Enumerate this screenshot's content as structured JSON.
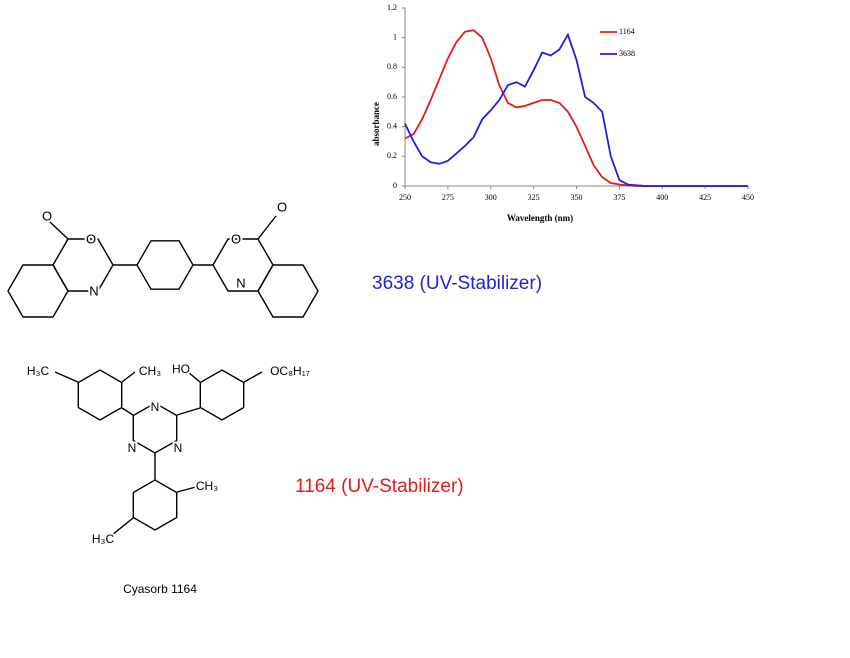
{
  "chart_data": {
    "type": "line",
    "x_label": "Wavelength (nm)",
    "y_label": "absorbance",
    "x": [
      250,
      255,
      260,
      265,
      270,
      275,
      280,
      285,
      290,
      295,
      300,
      305,
      310,
      315,
      320,
      325,
      330,
      335,
      340,
      345,
      350,
      355,
      360,
      365,
      370,
      375,
      380,
      385,
      390,
      395,
      400,
      425,
      450
    ],
    "series": [
      {
        "name": "1164",
        "color": "#e41a1c",
        "values": [
          0.32,
          0.35,
          0.45,
          0.58,
          0.72,
          0.86,
          0.97,
          1.04,
          1.05,
          1.0,
          0.86,
          0.68,
          0.56,
          0.53,
          0.54,
          0.56,
          0.58,
          0.58,
          0.56,
          0.5,
          0.4,
          0.27,
          0.14,
          0.06,
          0.02,
          0.01,
          0.005,
          0,
          0,
          0,
          0,
          0,
          0
        ]
      },
      {
        "name": "3638",
        "color": "#1f1fe6",
        "values": [
          0.42,
          0.3,
          0.2,
          0.16,
          0.15,
          0.17,
          0.22,
          0.27,
          0.33,
          0.45,
          0.51,
          0.58,
          0.68,
          0.7,
          0.67,
          0.78,
          0.9,
          0.88,
          0.92,
          1.02,
          0.85,
          0.6,
          0.56,
          0.5,
          0.2,
          0.04,
          0.01,
          0.005,
          0,
          0,
          0,
          0,
          0
        ]
      }
    ],
    "xlim": [
      250,
      450
    ],
    "xticks": [
      250,
      275,
      300,
      325,
      350,
      375,
      400,
      425,
      450
    ],
    "ylim": [
      0,
      1.2
    ],
    "yticks": [
      0,
      0.2,
      0.4,
      0.6,
      0.8,
      1,
      1.2
    ],
    "grid": false,
    "legend": "top-right"
  },
  "labels": {
    "stabilizer_3638": "3638 (UV-Stabilizer)",
    "stabilizer_1164": "1164 (UV-Stabilizer)",
    "caption_1164": "Cyasorb 1164"
  },
  "structure_3638": {
    "atoms": [
      "O",
      "O",
      "N",
      "O",
      "O",
      "N"
    ]
  },
  "structure_1164": {
    "atoms": [
      "H₃C",
      "CH₃",
      "HO",
      "OC₈H₁₇",
      "N",
      "N",
      "N",
      "CH₃",
      "H₃C"
    ]
  }
}
